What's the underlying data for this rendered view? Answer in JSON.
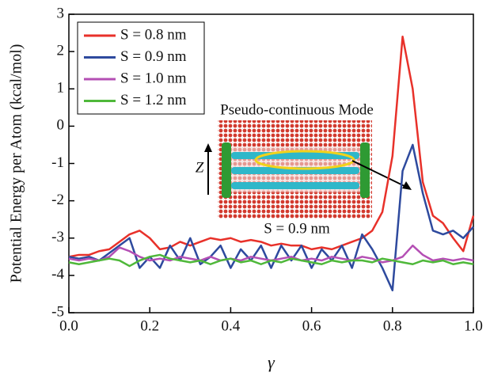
{
  "chart_data": {
    "type": "line",
    "x_label": "γ",
    "y_label": "Potential Energy per Atom (kcal/mol)",
    "annotations": [
      "Pseudo-continuous Mode",
      "Z",
      "S = 0.9 nm"
    ],
    "x": [
      0,
      0.025,
      0.05,
      0.075,
      0.1,
      0.125,
      0.15,
      0.175,
      0.2,
      0.225,
      0.25,
      0.275,
      0.3,
      0.325,
      0.35,
      0.375,
      0.4,
      0.425,
      0.45,
      0.475,
      0.5,
      0.525,
      0.55,
      0.575,
      0.6,
      0.625,
      0.65,
      0.675,
      0.7,
      0.725,
      0.75,
      0.775,
      0.8,
      0.825,
      0.85,
      0.875,
      0.9,
      0.925,
      0.95,
      0.975,
      1
    ],
    "series": [
      {
        "name": "S = 0.8 nm",
        "color": "#e8312a",
        "values": [
          -3.5,
          -3.45,
          -3.45,
          -3.35,
          -3.3,
          -3.1,
          -2.9,
          -2.8,
          -3.0,
          -3.3,
          -3.25,
          -3.1,
          -3.2,
          -3.1,
          -3.0,
          -3.05,
          -3.0,
          -3.1,
          -3.05,
          -3.1,
          -3.2,
          -3.15,
          -3.2,
          -3.2,
          -3.3,
          -3.25,
          -3.3,
          -3.2,
          -3.1,
          -3.0,
          -2.8,
          -2.3,
          -0.8,
          2.4,
          1.0,
          -1.5,
          -2.4,
          -2.6,
          -3.0,
          -3.35,
          -2.4
        ]
      },
      {
        "name": "S = 0.9 nm",
        "color": "#2e4a9e",
        "values": [
          -3.5,
          -3.55,
          -3.5,
          -3.6,
          -3.4,
          -3.2,
          -3.0,
          -3.8,
          -3.5,
          -3.8,
          -3.2,
          -3.6,
          -3.0,
          -3.7,
          -3.5,
          -3.2,
          -3.8,
          -3.3,
          -3.6,
          -3.2,
          -3.8,
          -3.2,
          -3.6,
          -3.2,
          -3.8,
          -3.3,
          -3.6,
          -3.2,
          -3.8,
          -2.9,
          -3.3,
          -3.8,
          -4.4,
          -1.2,
          -0.5,
          -1.8,
          -2.8,
          -2.9,
          -2.8,
          -3.0,
          -2.7
        ]
      },
      {
        "name": "S = 1.0 nm",
        "color": "#b44fb4",
        "values": [
          -3.55,
          -3.6,
          -3.55,
          -3.6,
          -3.5,
          -3.25,
          -3.35,
          -3.5,
          -3.6,
          -3.55,
          -3.6,
          -3.5,
          -3.55,
          -3.6,
          -3.5,
          -3.6,
          -3.55,
          -3.6,
          -3.5,
          -3.55,
          -3.6,
          -3.55,
          -3.5,
          -3.6,
          -3.55,
          -3.6,
          -3.5,
          -3.55,
          -3.6,
          -3.5,
          -3.55,
          -3.65,
          -3.6,
          -3.5,
          -3.2,
          -3.45,
          -3.6,
          -3.55,
          -3.6,
          -3.55,
          -3.6
        ]
      },
      {
        "name": "S = 1.2 nm",
        "color": "#4fb83a",
        "values": [
          -3.65,
          -3.7,
          -3.65,
          -3.6,
          -3.55,
          -3.6,
          -3.75,
          -3.6,
          -3.5,
          -3.45,
          -3.55,
          -3.6,
          -3.65,
          -3.6,
          -3.7,
          -3.6,
          -3.55,
          -3.65,
          -3.6,
          -3.7,
          -3.6,
          -3.65,
          -3.55,
          -3.6,
          -3.65,
          -3.7,
          -3.6,
          -3.65,
          -3.6,
          -3.6,
          -3.65,
          -3.55,
          -3.6,
          -3.65,
          -3.7,
          -3.6,
          -3.65,
          -3.6,
          -3.7,
          -3.65,
          -3.7
        ]
      }
    ],
    "xlim": [
      0,
      1
    ],
    "ylim": [
      -5,
      3
    ],
    "xticks": [
      {
        "value": 0,
        "label": "0.0"
      },
      0.2,
      0.4,
      0.6,
      0.8,
      {
        "value": 1,
        "label": "1.0"
      }
    ],
    "yticks": [
      -5,
      -4,
      -3,
      -2,
      -1,
      0,
      1,
      2,
      3
    ],
    "legend": "upper left",
    "grid": false
  }
}
